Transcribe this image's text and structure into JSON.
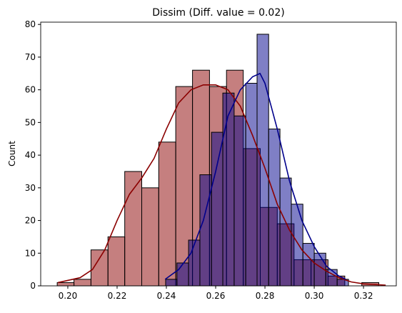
{
  "chart_data": {
    "type": "histogram",
    "title": "Dissim (Diff. value = 0.02)",
    "ylabel": "Count",
    "xlim": [
      0.189,
      0.3333
    ],
    "ylim": [
      0,
      80.7
    ],
    "xticks": [
      {
        "value": 0.2,
        "label": "0.20"
      },
      0.22,
      0.24,
      0.26,
      0.28,
      {
        "value": 0.3,
        "label": "0.30"
      },
      0.32
    ],
    "yticks": [
      0,
      10,
      20,
      30,
      40,
      50,
      60,
      70,
      80
    ],
    "series": [
      {
        "color": "#8b0000",
        "bins": [
          0.1957,
          0.2025,
          0.2094,
          0.2163,
          0.2231,
          0.23,
          0.2369,
          0.2438,
          0.2506,
          0.2575,
          0.2644,
          0.2712,
          0.2781,
          0.285,
          0.2918,
          0.2987,
          0.3056,
          0.3124,
          0.3193,
          0.3262
        ],
        "values": [
          1,
          2,
          11,
          15,
          35,
          30,
          44,
          61,
          66,
          61,
          66,
          42,
          24,
          19,
          8,
          8,
          3,
          0,
          1
        ],
        "kde": {
          "x": [
            0.196,
            0.205,
            0.21,
            0.215,
            0.22,
            0.225,
            0.23,
            0.235,
            0.24,
            0.245,
            0.25,
            0.255,
            0.26,
            0.265,
            0.27,
            0.275,
            0.28,
            0.285,
            0.29,
            0.295,
            0.3,
            0.305,
            0.31,
            0.315,
            0.32,
            0.329
          ],
          "y": [
            1,
            2.5,
            5,
            11,
            20,
            28,
            33,
            39,
            48,
            56,
            60,
            61.5,
            61.5,
            60,
            55,
            46,
            36,
            25,
            17,
            11,
            7,
            4.5,
            2.5,
            1.2,
            0.6,
            0.2
          ]
        }
      },
      {
        "color": "#00008b",
        "bins": [
          0.2397,
          0.2443,
          0.249,
          0.2536,
          0.2583,
          0.2629,
          0.2675,
          0.2722,
          0.2768,
          0.2815,
          0.2861,
          0.2907,
          0.2954,
          0.3,
          0.3047,
          0.3093,
          0.3139
        ],
        "values": [
          2,
          7,
          14,
          34,
          47,
          59,
          52,
          62,
          77,
          48,
          33,
          25,
          13,
          10,
          5,
          2
        ],
        "kde": {
          "x": [
            0.2395,
            0.245,
            0.25,
            0.255,
            0.26,
            0.265,
            0.27,
            0.275,
            0.278,
            0.28,
            0.285,
            0.29,
            0.295,
            0.3,
            0.305,
            0.31,
            0.3128
          ],
          "y": [
            2,
            5,
            10,
            20,
            35,
            52,
            60,
            64,
            65,
            62,
            48,
            32,
            20,
            12,
            6,
            3,
            2
          ]
        }
      }
    ]
  }
}
